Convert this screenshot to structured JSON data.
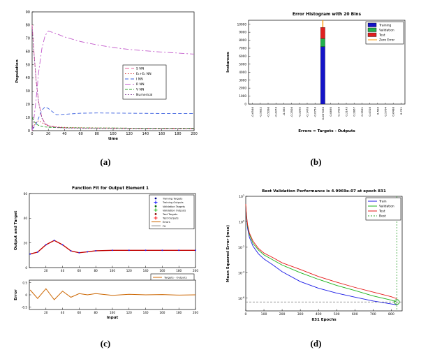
{
  "figure": {
    "captions": {
      "a": "(a)",
      "b": "(b)",
      "c": "(c)",
      "d": "(d)"
    }
  },
  "chart_data": [
    {
      "id": "population-dynamics",
      "type": "line",
      "panel": "a",
      "title": "",
      "xlabel": "time",
      "ylabel": "Population",
      "xlim": [
        0,
        200
      ],
      "ylim": [
        0,
        90
      ],
      "xticks": [
        0,
        20,
        40,
        60,
        80,
        100,
        120,
        140,
        160,
        180,
        200
      ],
      "yticks": [
        0,
        10,
        20,
        30,
        40,
        50,
        60,
        70,
        80,
        90
      ],
      "legend_position": "right-center",
      "series": [
        {
          "name": "S NN",
          "color": "#e8609a",
          "dash": "6 3",
          "x": [
            0,
            2,
            5,
            8,
            12,
            16,
            20,
            30,
            40,
            60,
            80,
            100,
            120,
            140,
            160,
            180,
            200
          ],
          "y": [
            80,
            62,
            38,
            22,
            10,
            5.5,
            3.8,
            2.6,
            2.2,
            2,
            1.9,
            1.8,
            1.7,
            1.6,
            1.5,
            1.5,
            1.4
          ]
        },
        {
          "name": "E₁+E₂ NN",
          "color": "#d62728",
          "dash": "1.5 2.5",
          "x": [
            0,
            2,
            5,
            8,
            12,
            16,
            20,
            30,
            40,
            60,
            80,
            100,
            120,
            140,
            160,
            180,
            200
          ],
          "y": [
            0,
            3.5,
            6.5,
            7.5,
            6.2,
            4.6,
            3.6,
            2.8,
            2.5,
            2.2,
            2.1,
            2,
            1.9,
            1.9,
            1.8,
            1.8,
            1.7
          ]
        },
        {
          "name": "I NN",
          "color": "#3a5fdf",
          "dash": "5 3",
          "x": [
            0,
            2,
            5,
            8,
            12,
            16,
            20,
            30,
            40,
            60,
            80,
            100,
            120,
            140,
            160,
            180,
            200
          ],
          "y": [
            1,
            2.2,
            5,
            9.5,
            15.5,
            18,
            16.8,
            12,
            12.4,
            13.2,
            13.4,
            13.3,
            13.2,
            13.1,
            13,
            13,
            13
          ]
        },
        {
          "name": "R NN",
          "color": "#c35ccc",
          "dash": "8 3 2 3",
          "x": [
            0,
            2,
            5,
            8,
            12,
            16,
            20,
            30,
            40,
            60,
            80,
            100,
            120,
            140,
            160,
            180,
            200
          ],
          "y": [
            0,
            8,
            24,
            44,
            62,
            72,
            75.5,
            73.5,
            71,
            67.5,
            65,
            63,
            61.5,
            60.5,
            59.5,
            58.8,
            58
          ]
        },
        {
          "name": "V NN",
          "color": "#2ca02c",
          "dash": "4 2",
          "x": [
            0,
            2,
            5,
            8,
            12,
            16,
            20,
            30,
            40,
            60,
            80,
            100,
            120,
            140,
            160,
            180,
            200
          ],
          "y": [
            10,
            7.2,
            5,
            4,
            3.2,
            2.8,
            2.6,
            2.3,
            2.2,
            2.1,
            2,
            2,
            1.9,
            1.9,
            1.8,
            1.8,
            1.8
          ]
        },
        {
          "name": "Numerical",
          "color": "#884499",
          "dash": "2 2",
          "x": [
            0,
            2,
            5,
            8,
            12,
            16,
            20,
            30,
            40,
            60,
            80,
            100,
            120,
            140,
            160,
            180,
            200
          ],
          "y": [
            79,
            61,
            37.5,
            21.5,
            9.6,
            5.2,
            3.6,
            2.4,
            2,
            1.8,
            1.7,
            1.6,
            1.5,
            1.5,
            1.4,
            1.4,
            1.3
          ]
        }
      ]
    },
    {
      "id": "error-histogram",
      "type": "bar",
      "panel": "b",
      "title": "Error Histogram with 20 Bins",
      "xlabel": "Errors = Targets - Outputs",
      "ylabel": "Instances",
      "ylim": [
        0,
        10500
      ],
      "yticks": [
        0,
        1000,
        2000,
        3000,
        4000,
        5000,
        6000,
        7000,
        8000,
        9000,
        10000
      ],
      "bin_labels": [
        "-0.6546",
        "-0.5822",
        "-0.5098",
        "-0.4374",
        "-0.365",
        "-0.2926",
        "-0.2202",
        "-0.1478",
        "-0.0754",
        "0.007036",
        "0.0695",
        "0.1419",
        "0.2143",
        "0.2867",
        "0.3591",
        "0.4316",
        "0.504",
        "0.5764",
        "0.6488",
        "0.721"
      ],
      "zero_bin": 9,
      "series": [
        {
          "name": "Training",
          "color": "#1414c8",
          "values": [
            0,
            0,
            0,
            0,
            0,
            0,
            0,
            0,
            0,
            7200,
            0,
            0,
            0,
            0,
            0,
            0,
            0,
            0,
            0,
            0
          ]
        },
        {
          "name": "Validation",
          "color": "#22b14c",
          "values": [
            0,
            0,
            0,
            0,
            0,
            0,
            0,
            0,
            0,
            1000,
            0,
            0,
            0,
            0,
            0,
            0,
            0,
            0,
            0,
            0
          ]
        },
        {
          "name": "Test",
          "color": "#e02020",
          "values": [
            0,
            0,
            0,
            0,
            0,
            0,
            0,
            0,
            0,
            1400,
            0,
            0,
            0,
            0,
            0,
            0,
            0,
            0,
            0,
            0
          ]
        }
      ],
      "zero_error": {
        "label": "Zero Error",
        "color": "#ff9900"
      }
    },
    {
      "id": "function-fit",
      "type": "line",
      "panel": "c",
      "title": "Function Fit for Output Element 1",
      "xlabel": "Input",
      "ylabel_top": "Output and Target",
      "ylabel_bottom": "Error",
      "xlim": [
        0,
        200
      ],
      "xticks": [
        20,
        40,
        60,
        80,
        100,
        120,
        140,
        160,
        180,
        200
      ],
      "ylim_top": [
        0,
        60
      ],
      "yticks_top": [
        0,
        20,
        40,
        60
      ],
      "ylim_bottom": [
        -0.6,
        0.6
      ],
      "yticks_bottom": [
        -0.5,
        0,
        0.5
      ],
      "fit": {
        "name": "Fit",
        "color": "#c00000",
        "x": [
          1,
          10,
          20,
          30,
          40,
          50,
          60,
          70,
          80,
          100,
          120,
          140,
          160,
          180,
          200
        ],
        "y": [
          11,
          12.5,
          18.5,
          22,
          18.5,
          13.5,
          12,
          12.8,
          13.6,
          14,
          14,
          14,
          14,
          14,
          14
        ]
      },
      "targets": {
        "name": "Targets",
        "color": "#1a1aff"
      },
      "errors": {
        "name": "Errors",
        "color": "#cc6600",
        "x": [
          1,
          10,
          20,
          30,
          40,
          50,
          60,
          70,
          80,
          100,
          120,
          140,
          160,
          180,
          200
        ],
        "y": [
          0.2,
          -0.15,
          0.25,
          -0.2,
          0.15,
          -0.1,
          0.05,
          0,
          0.05,
          -0.02,
          0.02,
          0,
          0.01,
          -0.01,
          0
        ]
      },
      "legend": [
        {
          "label": "Training Targets",
          "color": "#00008b",
          "marker": "dot"
        },
        {
          "label": "Training Outputs",
          "color": "#0000ff",
          "marker": "plus"
        },
        {
          "label": "Validation Targets",
          "color": "#006400",
          "marker": "dot"
        },
        {
          "label": "Validation Outputs",
          "color": "#00b000",
          "marker": "plus"
        },
        {
          "label": "Test Targets",
          "color": "#8b0000",
          "marker": "dot"
        },
        {
          "label": "Test Outputs",
          "color": "#ff0000",
          "marker": "plus"
        },
        {
          "label": "Errors",
          "color": "#cc6600",
          "marker": "line"
        },
        {
          "label": "Fit",
          "color": "#808080",
          "marker": "line"
        }
      ],
      "legend_bottom": [
        {
          "label": "Targets - Outputs",
          "color": "#cc6600",
          "marker": "line"
        }
      ]
    },
    {
      "id": "training-performance",
      "type": "line",
      "panel": "d",
      "ylog": true,
      "title": "Best Validation Performance is 4.9969e-07 at epoch 831",
      "xlabel": "831 Epochs",
      "ylabel": "Mean Squared Error (mse)",
      "xlim": [
        0,
        860
      ],
      "ylim": [
        1e-07,
        100
      ],
      "xticks": [
        0,
        100,
        200,
        300,
        400,
        500,
        600,
        700,
        800
      ],
      "yticks": [
        1e-06,
        0.0001,
        0.01,
        1,
        100
      ],
      "best": {
        "epoch": 831,
        "value": 4.9969e-07,
        "label": "Best",
        "color": "#2ca02c"
      },
      "series": [
        {
          "name": "Train",
          "color": "#1a1ae6",
          "dash": "",
          "x": [
            0,
            2,
            5,
            10,
            20,
            40,
            70,
            100,
            150,
            200,
            300,
            400,
            500,
            600,
            700,
            800,
            831
          ],
          "y": [
            20,
            6,
            1.5,
            0.3,
            0.06,
            0.012,
            0.003,
            0.0012,
            0.0004,
            0.00012,
            2e-05,
            6e-06,
            2.5e-06,
            1.2e-06,
            6e-07,
            3.5e-07,
            3e-07
          ]
        },
        {
          "name": "Validation",
          "color": "#19b219",
          "dash": "",
          "x": [
            0,
            2,
            5,
            10,
            20,
            40,
            70,
            100,
            150,
            200,
            300,
            400,
            500,
            600,
            700,
            800,
            831
          ],
          "y": [
            22,
            7,
            2,
            0.45,
            0.1,
            0.02,
            0.006,
            0.0025,
            0.001,
            0.0004,
            0.0001,
            3e-05,
            1e-05,
            4e-06,
            1.5e-06,
            7e-07,
            4.9969e-07
          ]
        },
        {
          "name": "Test",
          "color": "#e61919",
          "dash": "",
          "x": [
            0,
            2,
            5,
            10,
            20,
            40,
            70,
            100,
            150,
            200,
            300,
            400,
            500,
            600,
            700,
            800,
            831
          ],
          "y": [
            25,
            8,
            2.5,
            0.6,
            0.13,
            0.03,
            0.008,
            0.0035,
            0.0015,
            0.0006,
            0.00018,
            5e-05,
            1.8e-05,
            7e-06,
            3e-06,
            1.3e-06,
            9e-07
          ]
        }
      ]
    }
  ]
}
